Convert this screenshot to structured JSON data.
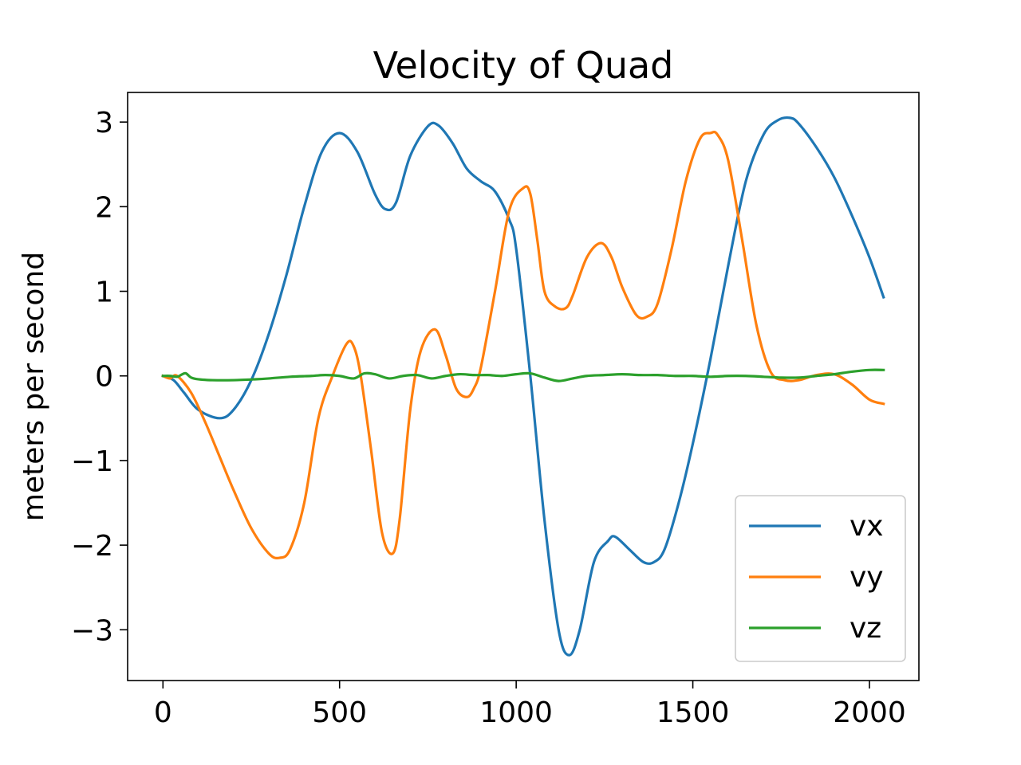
{
  "chart_data": {
    "type": "line",
    "title": "Velocity of Quad",
    "xlabel": "",
    "ylabel": "meters per second",
    "xlim": [
      -100,
      2140
    ],
    "ylim": [
      -3.6,
      3.35
    ],
    "xticks": [
      0,
      500,
      1000,
      1500,
      2000
    ],
    "xtick_labels": [
      "0",
      "500",
      "1000",
      "1500",
      "2000"
    ],
    "yticks": [
      3,
      2,
      1,
      0,
      -1,
      -2,
      -3
    ],
    "ytick_labels": [
      "3",
      "2",
      "1",
      "0",
      "−1",
      "−2",
      "−3"
    ],
    "grid": false,
    "legend_position": "lower-right",
    "series": [
      {
        "name": "vx",
        "color": "#1f77b4",
        "x": [
          0,
          30,
          60,
          100,
          160,
          200,
          250,
          300,
          350,
          400,
          450,
          500,
          550,
          600,
          630,
          660,
          700,
          750,
          780,
          820,
          860,
          900,
          940,
          980,
          1000,
          1040,
          1080,
          1120,
          1150,
          1180,
          1220,
          1260,
          1280,
          1320,
          1360,
          1390,
          1420,
          1460,
          1500,
          1550,
          1600,
          1650,
          1700,
          1740,
          1775,
          1800,
          1850,
          1900,
          1950,
          2000,
          2040
        ],
        "values": [
          0,
          -0.05,
          -0.2,
          -0.4,
          -0.5,
          -0.4,
          -0.05,
          0.5,
          1.2,
          2.0,
          2.65,
          2.87,
          2.65,
          2.15,
          1.97,
          2.05,
          2.6,
          2.95,
          2.96,
          2.75,
          2.45,
          2.3,
          2.18,
          1.85,
          1.5,
          0.0,
          -1.7,
          -3.0,
          -3.3,
          -3.0,
          -2.2,
          -1.95,
          -1.9,
          -2.05,
          -2.2,
          -2.2,
          -2.05,
          -1.5,
          -0.8,
          0.2,
          1.3,
          2.3,
          2.85,
          3.02,
          3.05,
          2.98,
          2.7,
          2.35,
          1.9,
          1.4,
          0.93
        ]
      },
      {
        "name": "vy",
        "color": "#ff7f0e",
        "x": [
          0,
          20,
          40,
          80,
          120,
          160,
          200,
          250,
          300,
          330,
          360,
          400,
          440,
          480,
          520,
          540,
          560,
          590,
          620,
          650,
          670,
          700,
          730,
          770,
          800,
          830,
          860,
          880,
          900,
          940,
          980,
          1020,
          1040,
          1060,
          1080,
          1110,
          1140,
          1160,
          1200,
          1240,
          1270,
          1300,
          1340,
          1370,
          1400,
          1440,
          1480,
          1520,
          1550,
          1570,
          1600,
          1640,
          1680,
          1720,
          1760,
          1800,
          1850,
          1900,
          1950,
          2000,
          2040
        ],
        "values": [
          0,
          -0.03,
          0,
          -0.2,
          -0.55,
          -0.95,
          -1.35,
          -1.8,
          -2.1,
          -2.15,
          -2.05,
          -1.5,
          -0.5,
          0.0,
          0.38,
          0.35,
          0.0,
          -0.9,
          -1.85,
          -2.1,
          -1.7,
          -0.4,
          0.3,
          0.55,
          0.25,
          -0.15,
          -0.25,
          -0.15,
          0.1,
          1.0,
          1.95,
          2.22,
          2.15,
          1.6,
          1.0,
          0.82,
          0.8,
          0.95,
          1.4,
          1.57,
          1.4,
          1.05,
          0.72,
          0.7,
          0.85,
          1.5,
          2.3,
          2.8,
          2.87,
          2.85,
          2.55,
          1.6,
          0.6,
          0.05,
          -0.05,
          -0.05,
          0.01,
          0.02,
          -0.1,
          -0.28,
          -0.33
        ]
      },
      {
        "name": "vz",
        "color": "#2ca02c",
        "x": [
          0,
          20,
          40,
          55,
          65,
          80,
          100,
          140,
          200,
          260,
          300,
          360,
          420,
          460,
          500,
          540,
          570,
          600,
          640,
          680,
          720,
          760,
          800,
          840,
          880,
          920,
          960,
          1000,
          1040,
          1080,
          1120,
          1160,
          1200,
          1250,
          1300,
          1350,
          1400,
          1450,
          1500,
          1550,
          1600,
          1650,
          1700,
          1750,
          1800,
          1850,
          1900,
          1950,
          2000,
          2040
        ],
        "values": [
          0,
          0,
          -0.01,
          0.02,
          0.03,
          -0.02,
          -0.04,
          -0.05,
          -0.05,
          -0.04,
          -0.03,
          -0.01,
          0.0,
          0.01,
          0.0,
          -0.03,
          0.03,
          0.02,
          -0.03,
          0.0,
          0.01,
          -0.03,
          0.0,
          0.02,
          0.01,
          0.01,
          0.0,
          0.02,
          0.03,
          -0.02,
          -0.06,
          -0.03,
          0.0,
          0.01,
          0.02,
          0.01,
          0.01,
          0.0,
          0.0,
          -0.01,
          0.0,
          0.0,
          -0.01,
          -0.02,
          -0.02,
          0.0,
          0.02,
          0.05,
          0.07,
          0.07
        ]
      }
    ]
  }
}
